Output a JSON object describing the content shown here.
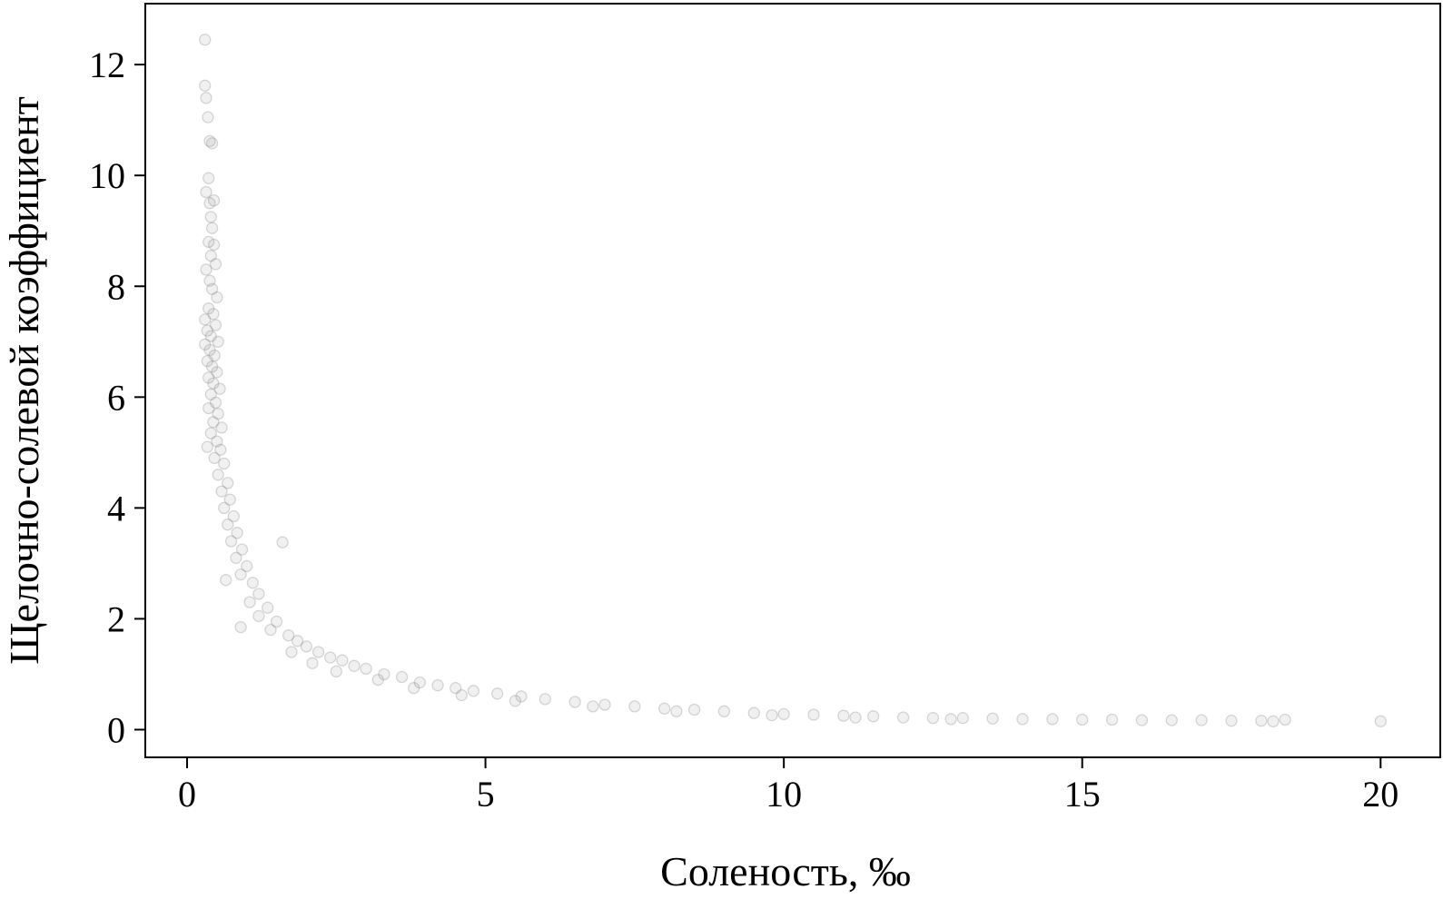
{
  "chart_data": {
    "type": "scatter",
    "xlabel": "Соленость, ‰",
    "ylabel": "Щелочно-солевой коэффициент",
    "xlim": [
      -0.7,
      21.0
    ],
    "ylim": [
      -0.5,
      13.1
    ],
    "x_ticks": [
      0,
      5,
      10,
      15,
      20
    ],
    "x_tick_labels": [
      "0",
      "5",
      "10",
      "15",
      "20"
    ],
    "y_ticks": [
      0,
      2,
      4,
      6,
      8,
      10,
      12
    ],
    "y_tick_labels": [
      "0",
      "2",
      "4",
      "6",
      "8",
      "10",
      "12"
    ],
    "grid": false,
    "legend": "none",
    "marker_color": "#808080",
    "series": [
      {
        "points": [
          [
            0.3,
            12.45
          ],
          [
            0.3,
            11.62
          ],
          [
            0.32,
            11.4
          ],
          [
            0.35,
            11.05
          ],
          [
            0.38,
            10.62
          ],
          [
            0.42,
            10.58
          ],
          [
            0.36,
            9.95
          ],
          [
            0.32,
            9.7
          ],
          [
            0.38,
            9.5
          ],
          [
            0.45,
            9.55
          ],
          [
            0.4,
            9.25
          ],
          [
            0.42,
            9.05
          ],
          [
            0.36,
            8.8
          ],
          [
            0.45,
            8.75
          ],
          [
            0.4,
            8.55
          ],
          [
            0.48,
            8.4
          ],
          [
            0.32,
            8.3
          ],
          [
            0.38,
            8.1
          ],
          [
            0.42,
            7.95
          ],
          [
            0.5,
            7.8
          ],
          [
            0.36,
            7.6
          ],
          [
            0.44,
            7.5
          ],
          [
            0.3,
            7.4
          ],
          [
            0.48,
            7.3
          ],
          [
            0.34,
            7.2
          ],
          [
            0.4,
            7.1
          ],
          [
            0.52,
            7.0
          ],
          [
            0.3,
            6.95
          ],
          [
            0.38,
            6.85
          ],
          [
            0.46,
            6.75
          ],
          [
            0.34,
            6.65
          ],
          [
            0.42,
            6.55
          ],
          [
            0.5,
            6.45
          ],
          [
            0.36,
            6.35
          ],
          [
            0.44,
            6.25
          ],
          [
            0.55,
            6.15
          ],
          [
            0.4,
            6.05
          ],
          [
            0.48,
            5.9
          ],
          [
            0.36,
            5.8
          ],
          [
            0.52,
            5.7
          ],
          [
            0.44,
            5.55
          ],
          [
            0.58,
            5.45
          ],
          [
            0.4,
            5.35
          ],
          [
            0.5,
            5.2
          ],
          [
            0.34,
            5.1
          ],
          [
            0.56,
            5.05
          ],
          [
            0.46,
            4.9
          ],
          [
            0.62,
            4.8
          ],
          [
            0.52,
            4.6
          ],
          [
            0.68,
            4.45
          ],
          [
            0.58,
            4.3
          ],
          [
            0.72,
            4.15
          ],
          [
            0.62,
            4.0
          ],
          [
            0.78,
            3.85
          ],
          [
            0.68,
            3.7
          ],
          [
            0.84,
            3.55
          ],
          [
            0.74,
            3.4
          ],
          [
            0.92,
            3.25
          ],
          [
            0.82,
            3.1
          ],
          [
            1.0,
            2.95
          ],
          [
            0.9,
            2.8
          ],
          [
            1.1,
            2.65
          ],
          [
            0.65,
            2.7
          ],
          [
            1.2,
            2.45
          ],
          [
            1.05,
            2.3
          ],
          [
            1.35,
            2.2
          ],
          [
            1.2,
            2.05
          ],
          [
            1.5,
            1.95
          ],
          [
            1.6,
            3.38
          ],
          [
            1.4,
            1.8
          ],
          [
            1.7,
            1.7
          ],
          [
            0.9,
            1.85
          ],
          [
            1.85,
            1.6
          ],
          [
            2.0,
            1.5
          ],
          [
            1.75,
            1.4
          ],
          [
            2.2,
            1.4
          ],
          [
            2.4,
            1.3
          ],
          [
            2.1,
            1.2
          ],
          [
            2.6,
            1.25
          ],
          [
            2.8,
            1.15
          ],
          [
            3.0,
            1.1
          ],
          [
            2.5,
            1.05
          ],
          [
            3.3,
            1.0
          ],
          [
            3.6,
            0.95
          ],
          [
            3.2,
            0.9
          ],
          [
            3.9,
            0.85
          ],
          [
            4.2,
            0.8
          ],
          [
            3.8,
            0.75
          ],
          [
            4.5,
            0.75
          ],
          [
            4.8,
            0.7
          ],
          [
            5.2,
            0.65
          ],
          [
            4.6,
            0.62
          ],
          [
            5.6,
            0.6
          ],
          [
            6.0,
            0.55
          ],
          [
            5.5,
            0.52
          ],
          [
            6.5,
            0.5
          ],
          [
            7.0,
            0.45
          ],
          [
            6.8,
            0.42
          ],
          [
            7.5,
            0.42
          ],
          [
            8.0,
            0.38
          ],
          [
            8.5,
            0.36
          ],
          [
            8.2,
            0.33
          ],
          [
            9.0,
            0.33
          ],
          [
            9.5,
            0.3
          ],
          [
            10.0,
            0.28
          ],
          [
            9.8,
            0.26
          ],
          [
            10.5,
            0.27
          ],
          [
            11.0,
            0.25
          ],
          [
            11.5,
            0.24
          ],
          [
            11.2,
            0.22
          ],
          [
            12.0,
            0.22
          ],
          [
            12.5,
            0.21
          ],
          [
            13.0,
            0.21
          ],
          [
            12.8,
            0.19
          ],
          [
            13.5,
            0.2
          ],
          [
            14.0,
            0.19
          ],
          [
            14.5,
            0.19
          ],
          [
            15.0,
            0.18
          ],
          [
            15.5,
            0.18
          ],
          [
            16.0,
            0.17
          ],
          [
            16.5,
            0.17
          ],
          [
            17.0,
            0.17
          ],
          [
            17.5,
            0.16
          ],
          [
            18.0,
            0.16
          ],
          [
            18.2,
            0.15
          ],
          [
            18.4,
            0.18
          ],
          [
            20.0,
            0.15
          ]
        ]
      }
    ]
  }
}
